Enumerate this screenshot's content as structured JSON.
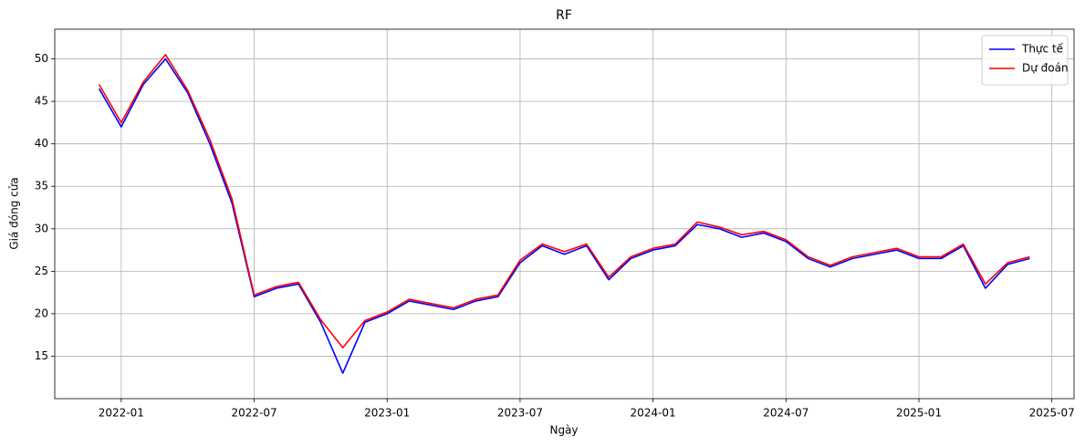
{
  "chart_data": {
    "type": "line",
    "title": "RF",
    "x_label": "Ngày",
    "y_label": "Giá đóng cửa",
    "x": [
      "2021-12",
      "2022-01",
      "2022-02",
      "2022-03",
      "2022-04",
      "2022-05",
      "2022-06",
      "2022-07",
      "2022-08",
      "2022-09",
      "2022-10",
      "2022-11",
      "2022-12",
      "2023-01",
      "2023-02",
      "2023-03",
      "2023-04",
      "2023-05",
      "2023-06",
      "2023-07",
      "2023-08",
      "2023-09",
      "2023-10",
      "2023-11",
      "2023-12",
      "2024-01",
      "2024-02",
      "2024-03",
      "2024-04",
      "2024-05",
      "2024-06",
      "2024-07",
      "2024-08",
      "2024-09",
      "2024-10",
      "2024-11",
      "2024-12",
      "2025-01",
      "2025-02",
      "2025-03",
      "2025-04",
      "2025-05",
      "2025-06"
    ],
    "series": [
      {
        "name": "Thực tế",
        "color": "#0000ff",
        "values": [
          46.5,
          42,
          47,
          50,
          46,
          40,
          33,
          22,
          23,
          23.5,
          19,
          13,
          19,
          20,
          21.5,
          21,
          20.5,
          21.5,
          22,
          26,
          28,
          27,
          28,
          24,
          26.5,
          27.5,
          28,
          30.5,
          30,
          29,
          29.5,
          28.5,
          26.5,
          25.5,
          26.5,
          27,
          27.5,
          26.5,
          26.5,
          28,
          23,
          25.8,
          26.5
        ]
      },
      {
        "name": "Dự đoán",
        "color": "#ff0000",
        "values": [
          47,
          42.5,
          47.3,
          50.5,
          46.3,
          40.5,
          33.5,
          22.2,
          23.2,
          23.7,
          19.3,
          16,
          19.2,
          20.2,
          21.7,
          21.2,
          20.7,
          21.7,
          22.2,
          26.3,
          28.2,
          27.3,
          28.2,
          24.3,
          26.7,
          27.7,
          28.2,
          30.8,
          30.2,
          29.3,
          29.7,
          28.7,
          26.7,
          25.7,
          26.7,
          27.2,
          27.7,
          26.7,
          26.7,
          28.2,
          23.5,
          26,
          26.7
        ]
      }
    ],
    "xlim": [
      "2021-10",
      "2025-08"
    ],
    "xticks": [
      "2022-01",
      "2022-07",
      "2023-01",
      "2023-07",
      "2024-01",
      "2024-07",
      "2025-01",
      "2025-07"
    ],
    "ylim": [
      10,
      53.5
    ],
    "yticks": [
      15,
      20,
      25,
      30,
      35,
      40,
      45,
      50
    ],
    "grid": true,
    "legend": "upper-right"
  }
}
